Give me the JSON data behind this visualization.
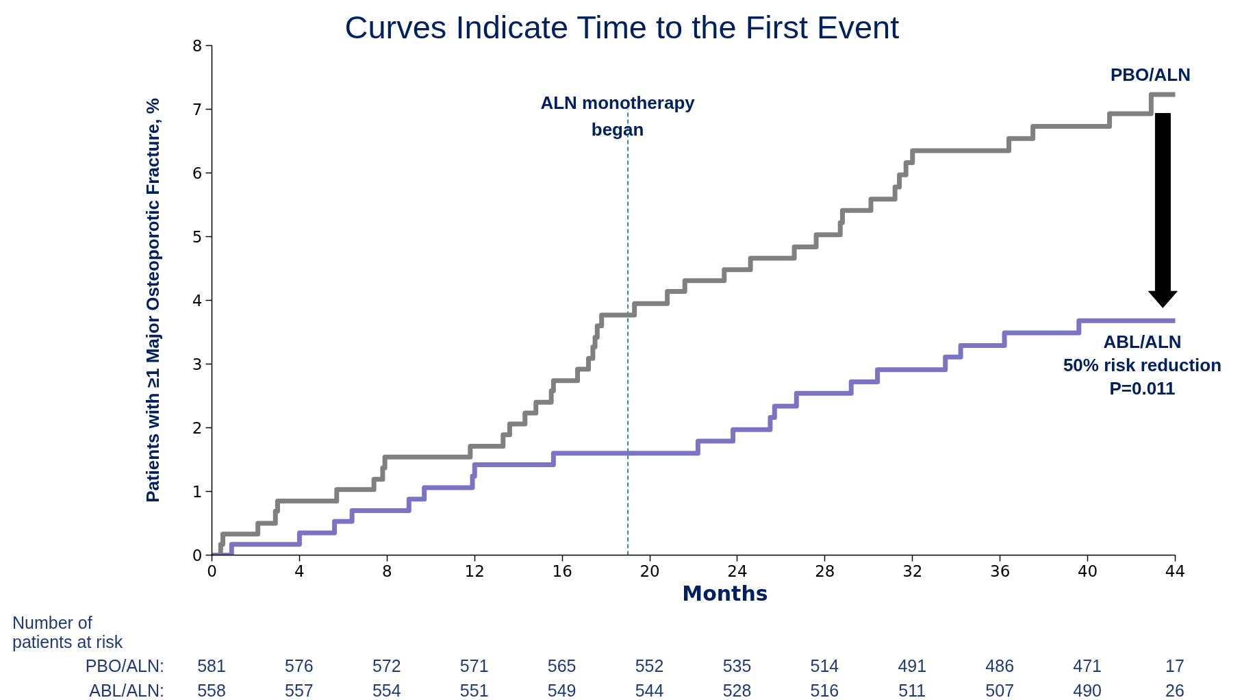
{
  "chart_data": [
    {
      "type": "step",
      "title": "Curves Indicate Time to the First Event",
      "xlabel": "Months",
      "ylabel": "Patients with ≥1 Major Osteoporotic Fracture, %",
      "xlim": [
        0,
        44
      ],
      "ylim": [
        0,
        8
      ],
      "xticks": [
        0,
        4,
        8,
        12,
        16,
        20,
        24,
        28,
        32,
        36,
        40,
        44
      ],
      "yticks": [
        0,
        1,
        2,
        3,
        4,
        5,
        6,
        7,
        8
      ],
      "series": [
        {
          "name": "PBO/ALN",
          "color": "#808080",
          "x": [
            0,
            0.4,
            0.5,
            2.1,
            2.9,
            3.0,
            5.7,
            7.4,
            7.8,
            7.9,
            11.8,
            13.3,
            13.6,
            14.3,
            14.8,
            15.5,
            15.6,
            16.7,
            17.2,
            17.4,
            17.5,
            17.6,
            17.8,
            19.3,
            20.8,
            21.6,
            23.4,
            24.6,
            26.6,
            27.6,
            28.7,
            28.8,
            30.1,
            31.2,
            31.4,
            31.7,
            32.0,
            36.4,
            37.5,
            41.0,
            42.9,
            44
          ],
          "values": [
            0,
            0.17,
            0.33,
            0.5,
            0.69,
            0.85,
            1.03,
            1.19,
            1.37,
            1.54,
            1.71,
            1.89,
            2.06,
            2.23,
            2.4,
            2.58,
            2.74,
            2.92,
            3.09,
            3.27,
            3.42,
            3.6,
            3.77,
            3.95,
            4.14,
            4.31,
            4.48,
            4.66,
            4.84,
            5.03,
            5.22,
            5.41,
            5.59,
            5.78,
            5.97,
            6.16,
            6.35,
            6.54,
            6.73,
            6.93,
            7.23,
            7.23
          ]
        },
        {
          "name": "ABL/ALN",
          "color": "#7b74c2",
          "x": [
            0,
            0.9,
            4.0,
            5.6,
            6.4,
            9.0,
            9.7,
            11.9,
            12.0,
            15.6,
            22.2,
            23.8,
            25.5,
            25.7,
            26.7,
            29.2,
            30.4,
            33.5,
            34.2,
            36.2,
            39.6,
            44
          ],
          "values": [
            0,
            0.17,
            0.35,
            0.53,
            0.7,
            0.88,
            1.06,
            1.24,
            1.42,
            1.6,
            1.79,
            1.97,
            2.16,
            2.34,
            2.54,
            2.72,
            2.91,
            3.11,
            3.29,
            3.49,
            3.68,
            3.68
          ]
        }
      ],
      "ref_lines": [
        {
          "axis": "x",
          "value": 19,
          "label": "ALN monotherapy\nbegan",
          "color": "#2f86a6",
          "line_style": "dashed"
        }
      ],
      "annotations": [
        "50% risk reduction",
        "P=0.011"
      ]
    },
    {
      "type": "other",
      "title": "Number of\npatients at risk",
      "annotations": [
        "PBO/ALN:",
        "581",
        "576",
        "572",
        "571",
        "565",
        "552",
        "535",
        "514",
        "491",
        "486",
        "471",
        "17",
        "ABL/ALN:",
        "558",
        "557",
        "554",
        "551",
        "549",
        "544",
        "528",
        "516",
        "511",
        "507",
        "490",
        "26"
      ]
    }
  ]
}
